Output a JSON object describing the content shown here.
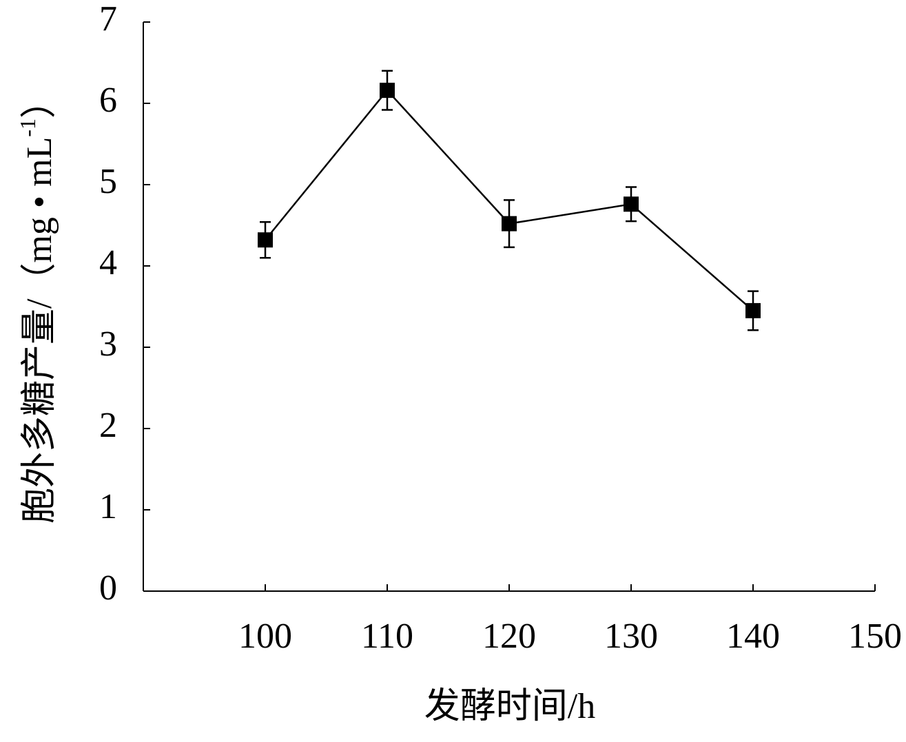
{
  "chart_data": {
    "type": "line",
    "x_label": "发酵时间/h",
    "y_label": {
      "text": "胞外多糖产量/（mg • mL",
      "sup": "-1",
      "close": "）"
    },
    "x": [
      100,
      110,
      120,
      130,
      140
    ],
    "series": [
      {
        "color": "#000000",
        "values": [
          4.32,
          6.16,
          4.52,
          4.76,
          3.45
        ],
        "errors": [
          0.22,
          0.24,
          0.29,
          0.21,
          0.24
        ]
      }
    ],
    "xlim": [
      90,
      150
    ],
    "xticks": [
      100,
      110,
      120,
      130,
      140,
      150
    ],
    "ylim": [
      0,
      7
    ],
    "yticks": [
      0,
      1,
      2,
      3,
      4,
      5,
      6,
      7
    ],
    "grid": false
  }
}
